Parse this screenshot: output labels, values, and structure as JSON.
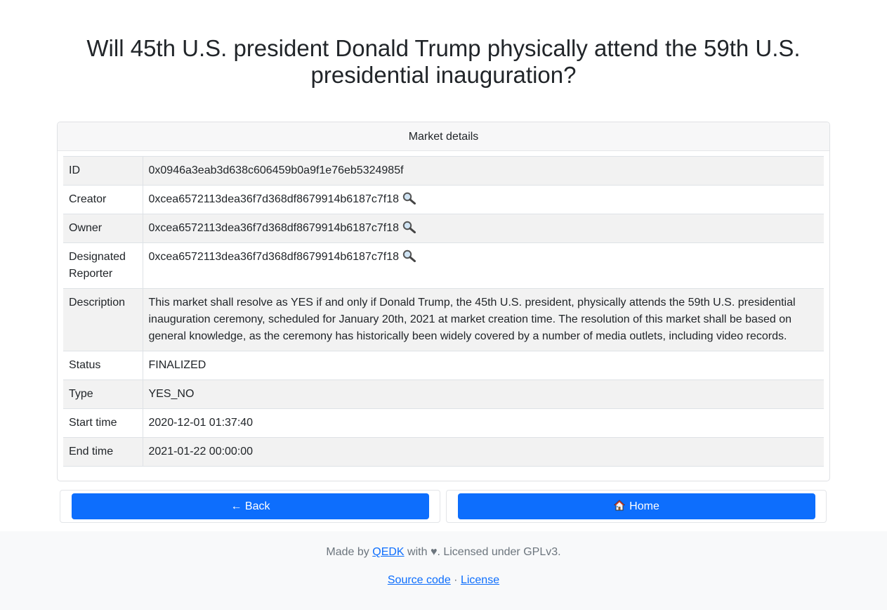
{
  "page": {
    "title": "Will 45th U.S. president Donald Trump physically attend the 59th U.S. presidential inauguration?"
  },
  "card": {
    "header": "Market details",
    "rows": [
      {
        "key": "ID",
        "value": "0x0946a3eab3d638c606459b0a9f1e76eb5324985f",
        "lens": false
      },
      {
        "key": "Creator",
        "value": "0xcea6572113dea36f7d368df8679914b6187c7f18",
        "lens": true
      },
      {
        "key": "Owner",
        "value": "0xcea6572113dea36f7d368df8679914b6187c7f18",
        "lens": true
      },
      {
        "key": "Designated Reporter",
        "value": "0xcea6572113dea36f7d368df8679914b6187c7f18",
        "lens": true
      },
      {
        "key": "Description",
        "value": "This market shall resolve as YES if and only if Donald Trump, the 45th U.S. president, physically attends the 59th U.S. presidential inauguration ceremony, scheduled for January 20th, 2021 at market creation time. The resolution of this market shall be based on general knowledge, as the ceremony has historically been widely covered by a number of media outlets, including video records.",
        "lens": false
      },
      {
        "key": "Status",
        "value": "FINALIZED",
        "lens": false
      },
      {
        "key": "Type",
        "value": "YES_NO",
        "lens": false
      },
      {
        "key": "Start time",
        "value": "2020-12-01 01:37:40",
        "lens": false
      },
      {
        "key": "End time",
        "value": "2021-01-22 00:00:00",
        "lens": false
      }
    ]
  },
  "buttons": {
    "back_label": "← Back",
    "home_label": "Home"
  },
  "footer": {
    "made_by": "Made by",
    "author_link": "QEDK",
    "with_text": "with ♥. Licensed under GPLv3.",
    "source_link": "Source code",
    "separator": "·",
    "license_link": "License"
  },
  "icons": {
    "lookup": "magnifying-glass-icon",
    "home": "house-icon"
  },
  "colors": {
    "primary": "#0d6efd",
    "stripe": "#f2f2f2",
    "footer_bg": "#f8f9fa"
  }
}
